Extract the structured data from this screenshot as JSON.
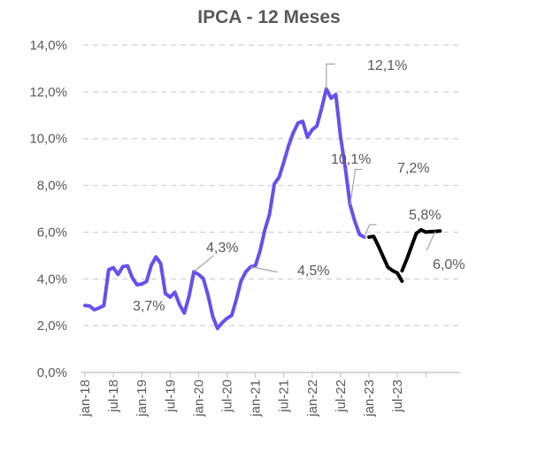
{
  "chart_data": {
    "type": "line",
    "title": "IPCA - 12 Meses",
    "xlabel": "",
    "ylabel": "",
    "ylim": [
      0,
      14
    ],
    "y_ticks": [
      "0,0%",
      "2,0%",
      "4,0%",
      "6,0%",
      "8,0%",
      "10,0%",
      "12,0%",
      "14,0%"
    ],
    "y_tick_values": [
      0,
      2,
      4,
      6,
      8,
      10,
      12,
      14
    ],
    "x_ticks": [
      {
        "label": "jan-18",
        "index": 0
      },
      {
        "label": "jul-18",
        "index": 6
      },
      {
        "label": "jan-19",
        "index": 12
      },
      {
        "label": "jul-19",
        "index": 18
      },
      {
        "label": "jan-20",
        "index": 24
      },
      {
        "label": "jul-20",
        "index": 30
      },
      {
        "label": "jan-21",
        "index": 36
      },
      {
        "label": "jul-21",
        "index": 42
      },
      {
        "label": "jan-22",
        "index": 48
      },
      {
        "label": "jul-22",
        "index": 54
      },
      {
        "label": "jan-23",
        "index": 60
      },
      {
        "label": "jul-23",
        "index": 66
      }
    ],
    "grid": true,
    "series": [
      {
        "color": "#6650ef",
        "start_index": 0,
        "values": [
          2.86,
          2.84,
          2.68,
          2.76,
          2.86,
          4.39,
          4.48,
          4.19,
          4.53,
          4.56,
          4.05,
          3.75,
          3.78,
          3.89,
          4.58,
          4.94,
          4.66,
          3.37,
          3.22,
          3.43,
          2.89,
          2.54,
          3.27,
          4.31,
          4.19,
          4.01,
          3.3,
          2.4,
          1.88,
          2.13,
          2.31,
          2.44,
          3.14,
          3.92,
          4.31,
          4.52,
          4.56,
          5.2,
          6.1,
          6.76,
          8.06,
          8.35,
          8.99,
          9.68,
          10.25,
          10.67,
          10.74,
          10.06,
          10.38,
          10.54,
          11.3,
          12.13,
          11.73,
          11.89,
          10.07,
          8.73,
          7.17,
          6.47,
          5.9,
          5.79
        ]
      },
      {
        "color": "#000000",
        "start_index": 60,
        "values": [
          5.77,
          5.6,
          4.65,
          4.18,
          3.94,
          3.16,
          3.99,
          4.61,
          5.19,
          4.82,
          4.68,
          5.8,
          6.1,
          6.0,
          6.05,
          6.02,
          6.05
        ]
      }
    ],
    "series_join": {
      "color": "#000000",
      "start_index": 60,
      "values": [
        5.79,
        5.82,
        5.4,
        4.95,
        4.5,
        4.35,
        4.25,
        3.9
      ]
    },
    "series_tail": {
      "color": "#000000",
      "start_index": 67,
      "values": [
        4.35,
        4.85,
        5.4,
        5.95,
        6.1,
        6.0,
        6.02,
        6.03,
        6.05
      ]
    },
    "annotations": [
      {
        "label": "3,7%",
        "index": 11,
        "value": 3.75
      },
      {
        "label": "4,3%",
        "index": 23,
        "value": 4.31
      },
      {
        "label": "4,5%",
        "index": 35,
        "value": 4.52
      },
      {
        "label": "12,1%",
        "index": 51,
        "value": 12.13
      },
      {
        "label": "10,1%",
        "index": 47,
        "value": 10.06
      },
      {
        "label": "7,2%",
        "index": 56,
        "value": 7.17
      },
      {
        "label": "5,8%",
        "index": 59,
        "value": 5.79
      },
      {
        "label": "6,0%",
        "index": 74,
        "value": 6.03
      }
    ]
  }
}
